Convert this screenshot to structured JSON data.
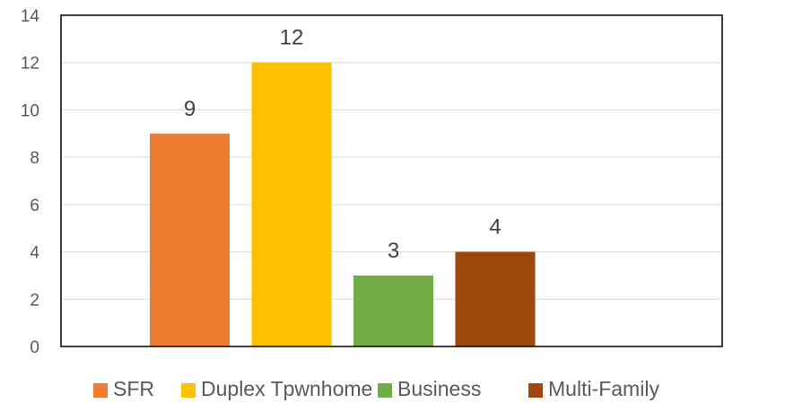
{
  "chart_data": {
    "type": "bar",
    "categories": [
      "SFR",
      "Duplex Tpwnhome",
      "Business",
      "Multi-Family"
    ],
    "series": [
      {
        "name": "SFR",
        "value": 9,
        "color": "#ED7D31"
      },
      {
        "name": "Duplex Tpwnhome",
        "value": 12,
        "color": "#FFC000"
      },
      {
        "name": "Business",
        "value": 3,
        "color": "#70AD47"
      },
      {
        "name": "Multi-Family",
        "value": 4,
        "color": "#9E480E"
      }
    ],
    "data_labels": [
      "9",
      "12",
      "3",
      "4"
    ],
    "y_ticks": [
      "0",
      "2",
      "4",
      "6",
      "8",
      "10",
      "12",
      "14"
    ],
    "ylim": [
      0,
      14
    ],
    "grid": true,
    "legend": "bottom"
  }
}
